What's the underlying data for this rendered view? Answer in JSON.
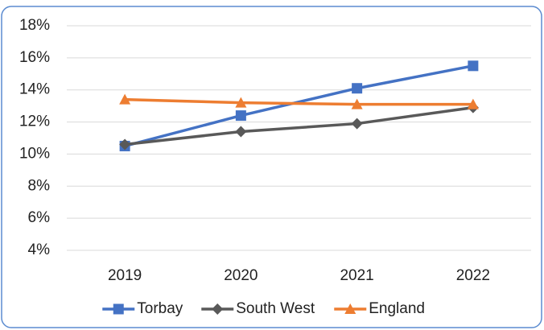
{
  "chart_data": {
    "type": "line",
    "categories": [
      "2019",
      "2020",
      "2021",
      "2022"
    ],
    "series": [
      {
        "name": "Torbay",
        "color": "#4472c4",
        "marker": "square",
        "values": [
          10.5,
          12.4,
          14.1,
          15.5
        ]
      },
      {
        "name": "South West",
        "color": "#595959",
        "marker": "diamond",
        "values": [
          10.6,
          11.4,
          11.9,
          12.9
        ]
      },
      {
        "name": "England",
        "color": "#ed7d31",
        "marker": "triangle",
        "values": [
          13.4,
          13.2,
          13.1,
          13.1
        ]
      }
    ],
    "ylim": [
      4,
      18
    ],
    "yticks": [
      {
        "value": 4,
        "label": "4%"
      },
      {
        "value": 6,
        "label": "6%"
      },
      {
        "value": 8,
        "label": "8%"
      },
      {
        "value": 10,
        "label": "10%"
      },
      {
        "value": 12,
        "label": "12%"
      },
      {
        "value": 14,
        "label": "14%"
      },
      {
        "value": 16,
        "label": "16%"
      },
      {
        "value": 18,
        "label": "18%"
      }
    ],
    "grid": true,
    "legend": "bottom"
  }
}
